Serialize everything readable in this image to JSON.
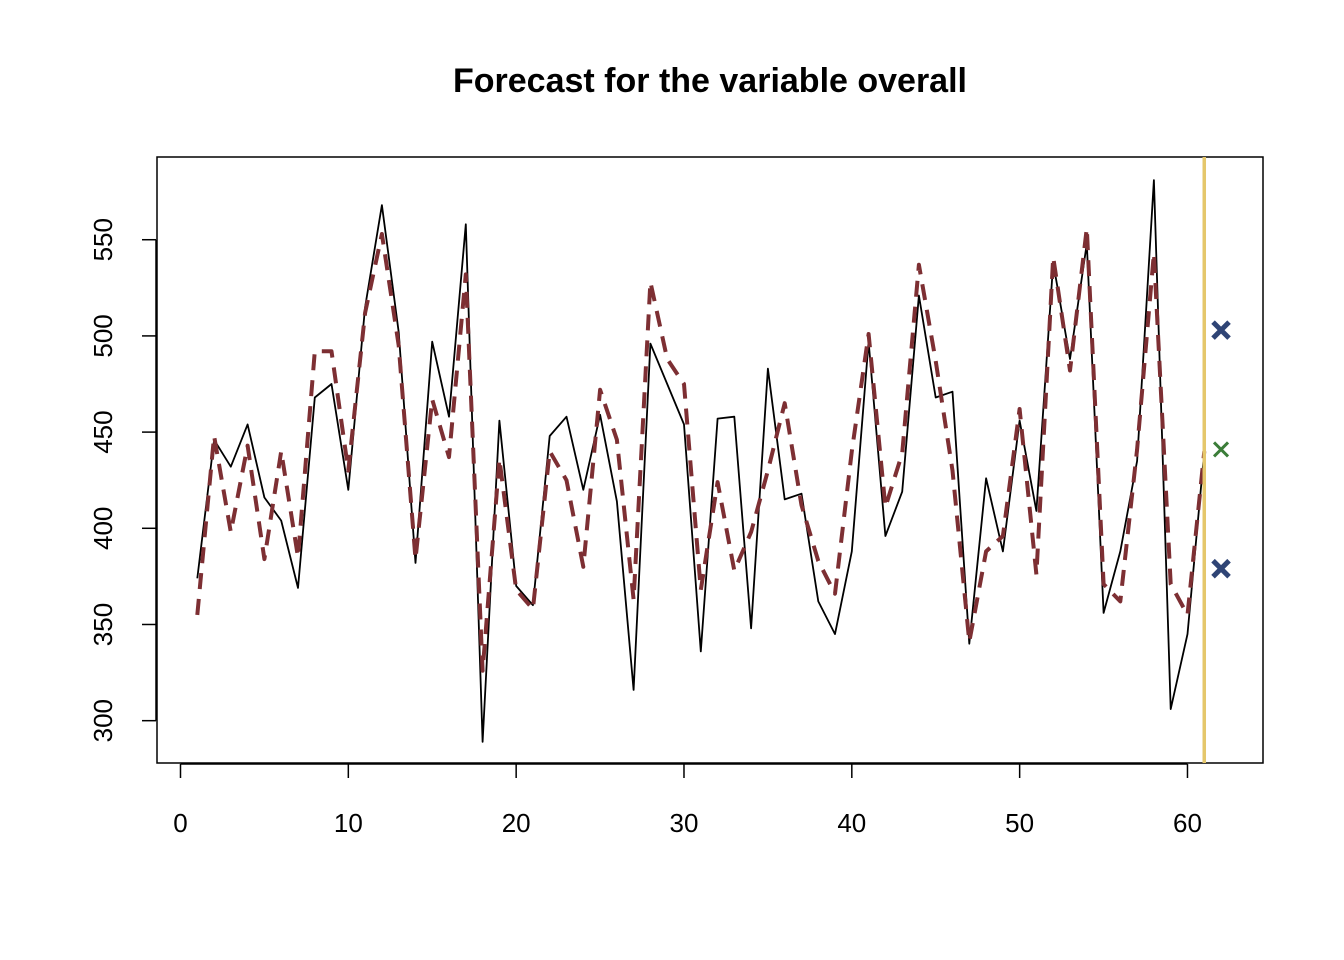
{
  "chart_data": {
    "type": "line",
    "title": "Forecast for the variable overall",
    "xlabel": "",
    "ylabel": "",
    "xlim": [
      -1.4,
      64.5
    ],
    "ylim": [
      278,
      593
    ],
    "x_ticks": [
      0,
      10,
      20,
      30,
      40,
      50,
      60
    ],
    "y_ticks": [
      300,
      350,
      400,
      450,
      500,
      550
    ],
    "grid": false,
    "legend": "none",
    "colors": {
      "actual": "#000000",
      "fitted": "#7d2f33",
      "forecast_line": "#e5c76b",
      "interval": "#2f4475",
      "point_forecast": "#3b7d38"
    },
    "series": [
      {
        "style": "solid",
        "x": [
          1,
          2,
          3,
          4,
          5,
          6,
          7,
          8,
          9,
          10,
          11,
          12,
          13,
          14,
          15,
          16,
          17,
          18,
          19,
          20,
          21,
          22,
          23,
          24,
          25,
          26,
          27,
          28,
          29,
          30,
          31,
          32,
          33,
          34,
          35,
          36,
          37,
          38,
          39,
          40,
          41,
          42,
          43,
          44,
          45,
          46,
          47,
          48,
          49,
          50,
          51,
          52,
          53,
          54,
          55,
          56,
          57,
          58,
          59,
          60,
          61
        ],
        "values": [
          374,
          446,
          432,
          454,
          416,
          404,
          369,
          468,
          475,
          420,
          515,
          568,
          502,
          382,
          497,
          458,
          558,
          289,
          456,
          370,
          360,
          448,
          458,
          420,
          459,
          414,
          316,
          496,
          475,
          454,
          336,
          457,
          458,
          348,
          483,
          415,
          418,
          362,
          345,
          388,
          497,
          396,
          419,
          521,
          468,
          471,
          340,
          426,
          388,
          456,
          409,
          538,
          488,
          548,
          356,
          388,
          435,
          581,
          306,
          345,
          440
        ]
      },
      {
        "style": "dashed",
        "x": [
          1,
          2,
          3,
          4,
          5,
          6,
          7,
          8,
          9,
          10,
          11,
          12,
          13,
          14,
          15,
          16,
          17,
          18,
          19,
          20,
          21,
          22,
          23,
          24,
          25,
          26,
          27,
          28,
          29,
          30,
          31,
          32,
          33,
          34,
          35,
          36,
          37,
          38,
          39,
          40,
          41,
          42,
          43,
          44,
          45,
          46,
          47,
          48,
          49,
          50,
          51,
          52,
          53,
          54,
          55,
          56,
          57,
          58,
          59,
          60,
          61
        ],
        "values": [
          355,
          448,
          398,
          443,
          384,
          440,
          385,
          492,
          492,
          430,
          512,
          553,
          495,
          384,
          467,
          437,
          532,
          326,
          436,
          368,
          358,
          440,
          425,
          380,
          472,
          446,
          363,
          528,
          488,
          475,
          368,
          424,
          378,
          398,
          430,
          465,
          412,
          383,
          366,
          440,
          501,
          411,
          439,
          537,
          487,
          430,
          341,
          388,
          396,
          462,
          376,
          541,
          482,
          556,
          371,
          362,
          441,
          543,
          371,
          355,
          440
        ]
      }
    ],
    "forecast": {
      "x_origin": 61,
      "x": 62,
      "point": 441,
      "lower": 379,
      "upper": 503
    }
  }
}
